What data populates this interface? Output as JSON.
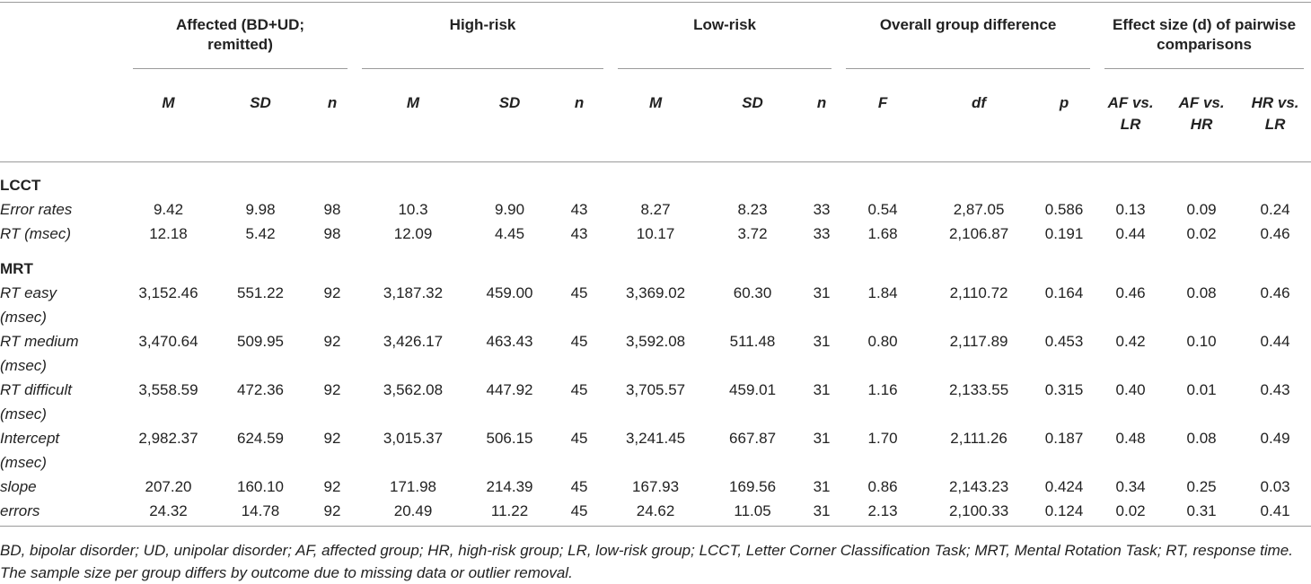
{
  "table": {
    "groups": [
      "Affected (BD+UD; remitted)",
      "High-risk",
      "Low-risk",
      "Overall group difference",
      "Effect size (d) of pairwise comparisons"
    ],
    "subheaders": [
      "M",
      "SD",
      "n",
      "M",
      "SD",
      "n",
      "M",
      "SD",
      "n",
      "F",
      "df",
      "p",
      "AF vs. LR",
      "AF vs. HR",
      "HR vs. LR"
    ],
    "sections": [
      {
        "title": "LCCT",
        "rows": [
          {
            "label": "Error rates",
            "values": [
              "9.42",
              "9.98",
              "98",
              "10.3",
              "9.90",
              "43",
              "8.27",
              "8.23",
              "33",
              "0.54",
              "2,87.05",
              "0.586",
              "0.13",
              "0.09",
              "0.24"
            ]
          },
          {
            "label": "RT (msec)",
            "values": [
              "12.18",
              "5.42",
              "98",
              "12.09",
              "4.45",
              "43",
              "10.17",
              "3.72",
              "33",
              "1.68",
              "2,106.87",
              "0.191",
              "0.44",
              "0.02",
              "0.46"
            ]
          }
        ]
      },
      {
        "title": "MRT",
        "rows": [
          {
            "label": "RT easy (msec)",
            "values": [
              "3,152.46",
              "551.22",
              "92",
              "3,187.32",
              "459.00",
              "45",
              "3,369.02",
              "60.30",
              "31",
              "1.84",
              "2,110.72",
              "0.164",
              "0.46",
              "0.08",
              "0.46"
            ]
          },
          {
            "label": "RT medium (msec)",
            "values": [
              "3,470.64",
              "509.95",
              "92",
              "3,426.17",
              "463.43",
              "45",
              "3,592.08",
              "511.48",
              "31",
              "0.80",
              "2,117.89",
              "0.453",
              "0.42",
              "0.10",
              "0.44"
            ]
          },
          {
            "label": "RT difficult (msec)",
            "values": [
              "3,558.59",
              "472.36",
              "92",
              "3,562.08",
              "447.92",
              "45",
              "3,705.57",
              "459.01",
              "31",
              "1.16",
              "2,133.55",
              "0.315",
              "0.40",
              "0.01",
              "0.43"
            ]
          },
          {
            "label": "Intercept (msec)",
            "values": [
              "2,982.37",
              "624.59",
              "92",
              "3,015.37",
              "506.15",
              "45",
              "3,241.45",
              "667.87",
              "31",
              "1.70",
              "2,111.26",
              "0.187",
              "0.48",
              "0.08",
              "0.49"
            ]
          },
          {
            "label": "slope",
            "values": [
              "207.20",
              "160.10",
              "92",
              "171.98",
              "214.39",
              "45",
              "167.93",
              "169.56",
              "31",
              "0.86",
              "2,143.23",
              "0.424",
              "0.34",
              "0.25",
              "0.03"
            ]
          },
          {
            "label": "errors",
            "values": [
              "24.32",
              "14.78",
              "92",
              "20.49",
              "11.22",
              "45",
              "24.62",
              "11.05",
              "31",
              "2.13",
              "2,100.33",
              "0.124",
              "0.02",
              "0.31",
              "0.41"
            ]
          }
        ]
      }
    ],
    "footnotes": [
      "BD, bipolar disorder; UD, unipolar disorder; AF, affected group; HR, high-risk group; LR, low-risk group; LCCT, Letter Corner Classification Task; MRT, Mental Rotation Task; RT, response time.",
      "The sample size per group differs by outcome due to missing data or outlier removal."
    ]
  }
}
